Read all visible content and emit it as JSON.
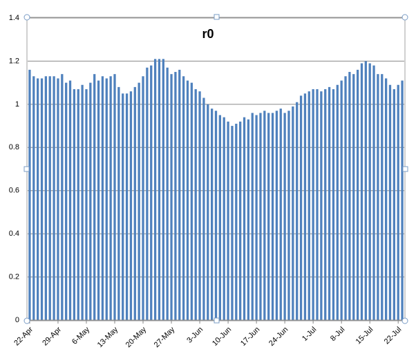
{
  "chart_data": {
    "type": "bar",
    "title": "r0",
    "categories": [
      "22-Apr",
      null,
      null,
      null,
      null,
      null,
      null,
      "29-Apr",
      null,
      null,
      null,
      null,
      null,
      null,
      "6-May",
      null,
      null,
      null,
      null,
      null,
      null,
      "13-May",
      null,
      null,
      null,
      null,
      null,
      null,
      "20-May",
      null,
      null,
      null,
      null,
      null,
      null,
      "27-May",
      null,
      null,
      null,
      null,
      null,
      null,
      "3-Jun",
      null,
      null,
      null,
      null,
      null,
      null,
      "10-Jun",
      null,
      null,
      null,
      null,
      null,
      null,
      "17-Jun",
      null,
      null,
      null,
      null,
      null,
      null,
      "24-Jun",
      null,
      null,
      null,
      null,
      null,
      null,
      "1-Jul",
      null,
      null,
      null,
      null,
      null,
      null,
      "8-Jul",
      null,
      null,
      null,
      null,
      null,
      null,
      "15-Jul",
      null,
      null,
      null,
      null,
      null,
      null,
      "22-Jul",
      null
    ],
    "values": [
      1.16,
      1.13,
      1.12,
      1.12,
      1.13,
      1.13,
      1.13,
      1.12,
      1.14,
      1.1,
      1.11,
      1.07,
      1.07,
      1.09,
      1.07,
      1.1,
      1.14,
      1.11,
      1.13,
      1.12,
      1.13,
      1.14,
      1.08,
      1.05,
      1.05,
      1.06,
      1.08,
      1.1,
      1.13,
      1.17,
      1.18,
      1.21,
      1.21,
      1.21,
      1.17,
      1.14,
      1.15,
      1.16,
      1.13,
      1.11,
      1.1,
      1.07,
      1.06,
      1.03,
      1.0,
      0.98,
      0.97,
      0.95,
      0.94,
      0.92,
      0.9,
      0.91,
      0.92,
      0.94,
      0.93,
      0.96,
      0.95,
      0.96,
      0.97,
      0.96,
      0.96,
      0.97,
      0.98,
      0.96,
      0.97,
      0.99,
      1.01,
      1.04,
      1.05,
      1.06,
      1.07,
      1.07,
      1.06,
      1.07,
      1.08,
      1.07,
      1.09,
      1.11,
      1.13,
      1.15,
      1.14,
      1.16,
      1.19,
      1.2,
      1.19,
      1.18,
      1.14,
      1.14,
      1.12,
      1.09,
      1.07,
      1.09,
      1.11
    ],
    "color": "#4f81bd",
    "ylim": [
      0,
      1.4
    ],
    "yticks": [
      0,
      0.2,
      0.4,
      0.6,
      0.8,
      1,
      1.2,
      1.4
    ],
    "grid": true
  }
}
